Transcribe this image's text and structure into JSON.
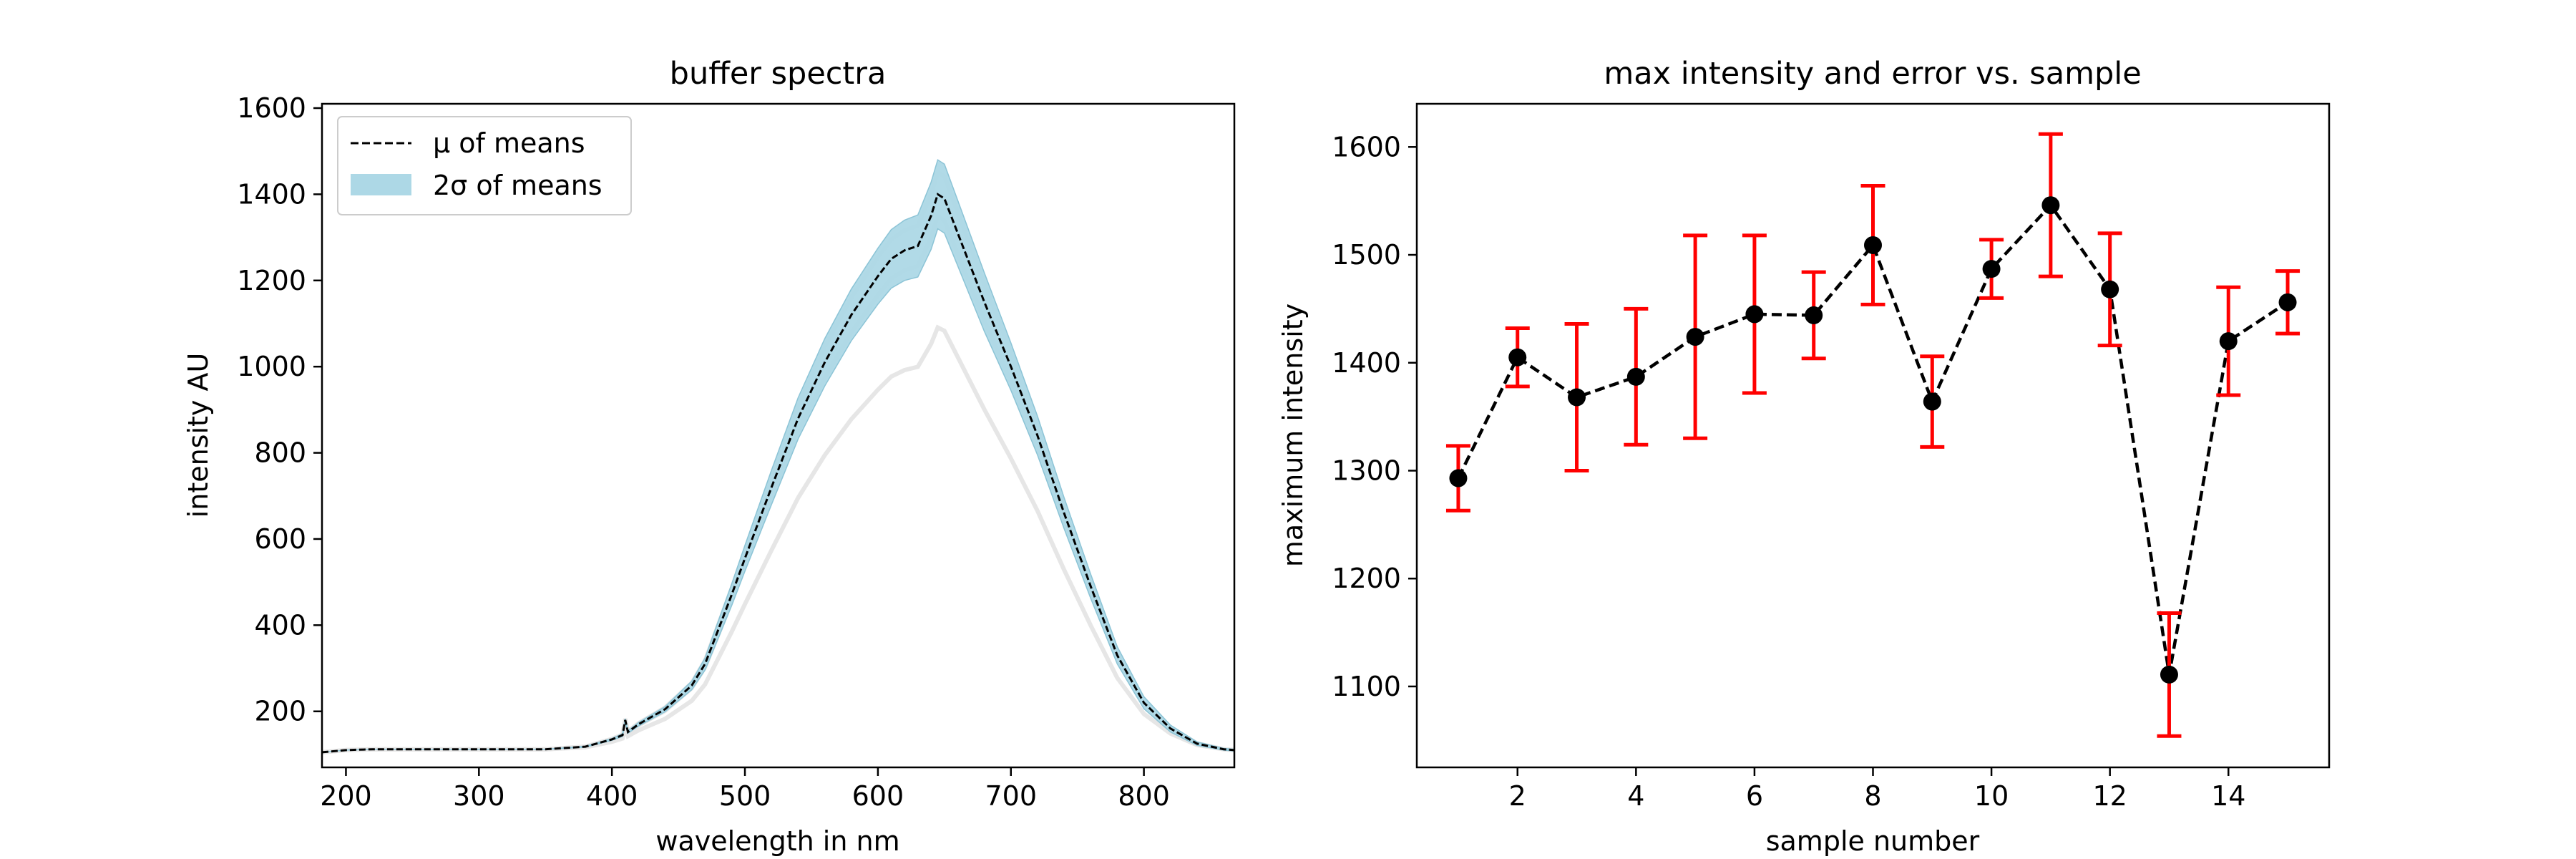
{
  "chart_data": [
    {
      "type": "line",
      "title": "buffer spectra",
      "xlabel": "wavelength in nm",
      "ylabel": "intensity AU",
      "xlim": [
        182,
        868
      ],
      "ylim": [
        70,
        1610
      ],
      "xticks": [
        200,
        300,
        400,
        500,
        600,
        700,
        800
      ],
      "yticks": [
        200,
        400,
        600,
        800,
        1000,
        1200,
        1400,
        1600
      ],
      "grid": false,
      "legend": {
        "position": "top-left",
        "entries": [
          {
            "label": "μ of means",
            "style": "dashed",
            "color": "#000000"
          },
          {
            "label": "2σ of means",
            "style": "band",
            "color": "#add8e6"
          }
        ]
      },
      "mean_curve": {
        "x": [
          182,
          200,
          220,
          250,
          300,
          350,
          380,
          400,
          408,
          410,
          412,
          420,
          440,
          460,
          470,
          480,
          490,
          500,
          520,
          540,
          560,
          580,
          600,
          610,
          620,
          630,
          640,
          645,
          650,
          660,
          670,
          680,
          700,
          720,
          740,
          760,
          780,
          800,
          820,
          840,
          860,
          868
        ],
        "y": [
          105,
          110,
          112,
          112,
          112,
          112,
          118,
          135,
          145,
          180,
          152,
          170,
          205,
          260,
          310,
          390,
          470,
          555,
          720,
          880,
          1010,
          1120,
          1210,
          1250,
          1270,
          1280,
          1350,
          1400,
          1390,
          1310,
          1230,
          1150,
          1000,
          840,
          660,
          490,
          330,
          220,
          160,
          125,
          112,
          110
        ]
      },
      "band_halfwidth": [
        0,
        0,
        0,
        0,
        0,
        0,
        1,
        2,
        3,
        3,
        3,
        4,
        6,
        10,
        14,
        20,
        25,
        30,
        40,
        48,
        55,
        60,
        65,
        68,
        70,
        72,
        78,
        80,
        80,
        76,
        72,
        68,
        55,
        45,
        36,
        28,
        20,
        14,
        8,
        4,
        2,
        2
      ],
      "faint_curves": [
        {
          "name": "",
          "scale": 0.76,
          "color": "#e6e6e6"
        },
        {
          "name": "",
          "scale": 1.04,
          "color": "#e6e6e6"
        },
        {
          "name": "",
          "scale": 0.96,
          "color": "#e6e6e6"
        }
      ]
    },
    {
      "type": "scatter",
      "title": "max intensity and error vs. sample",
      "xlabel": "sample number",
      "ylabel": "maximum intensity",
      "xlim": [
        0.3,
        15.7
      ],
      "ylim": [
        1025,
        1640
      ],
      "xticks": [
        2,
        4,
        6,
        8,
        10,
        12,
        14
      ],
      "yticks": [
        1100,
        1200,
        1300,
        1400,
        1500,
        1600
      ],
      "grid": false,
      "line_style": "dashed",
      "marker_color": "#000000",
      "errorbar_color": "#ff0000",
      "x": [
        1,
        2,
        3,
        4,
        5,
        6,
        7,
        8,
        9,
        10,
        11,
        12,
        13,
        14,
        15
      ],
      "y": [
        1293,
        1405,
        1368,
        1387,
        1424,
        1445,
        1444,
        1509,
        1364,
        1487,
        1546,
        1468,
        1111,
        1420,
        1456
      ],
      "yerr": [
        30,
        27,
        68,
        63,
        94,
        73,
        40,
        55,
        42,
        27,
        66,
        52,
        57,
        50,
        29
      ]
    }
  ]
}
